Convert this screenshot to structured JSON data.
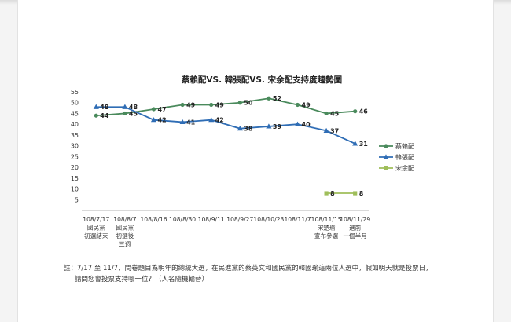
{
  "chart_data": {
    "type": "line",
    "title": "蔡賴配VS. 韓張配VS. 宋余配支持度趨勢圖",
    "ylim": [
      0,
      55
    ],
    "yticks": [
      5,
      10,
      15,
      20,
      25,
      30,
      35,
      40,
      45,
      50,
      55
    ],
    "grid": false,
    "legend_position": "right",
    "categories": [
      [
        "108/7/17",
        "國民黨",
        "初選結束"
      ],
      [
        "108/8/7",
        "國民黨",
        "初選後",
        "三週"
      ],
      [
        "108/8/16"
      ],
      [
        "108/8/30"
      ],
      [
        "108/9/11"
      ],
      [
        "108/9/27"
      ],
      [
        "108/10/23"
      ],
      [
        "108/11/7"
      ],
      [
        "108/11/15",
        "宋楚瑜",
        "宣布參選"
      ],
      [
        "108/11/29",
        "選前",
        "一個半月"
      ]
    ],
    "series": [
      {
        "name": "蔡賴配",
        "color": "#4a8a5c",
        "marker": "circle",
        "values": [
          44,
          45,
          47,
          49,
          49,
          50,
          52,
          49,
          45,
          46
        ]
      },
      {
        "name": "韓張配",
        "color": "#2f6db5",
        "marker": "triangle",
        "values": [
          48,
          48,
          42,
          41,
          42,
          38,
          39,
          40,
          37,
          31
        ]
      },
      {
        "name": "宋余配",
        "color": "#9fbe5a",
        "marker": "square",
        "values": [
          null,
          null,
          null,
          null,
          null,
          null,
          null,
          null,
          8,
          8
        ]
      }
    ]
  },
  "note": {
    "label": "註：",
    "line1": "7/17 至 11/7，問卷題目為明年的總統大選，在民進黨的蔡英文和國民黨的韓國瑜這兩位人選中，假如明天就是投票日，",
    "line2": "請問您會投票支持哪一位？（人名隨機輪替）"
  }
}
